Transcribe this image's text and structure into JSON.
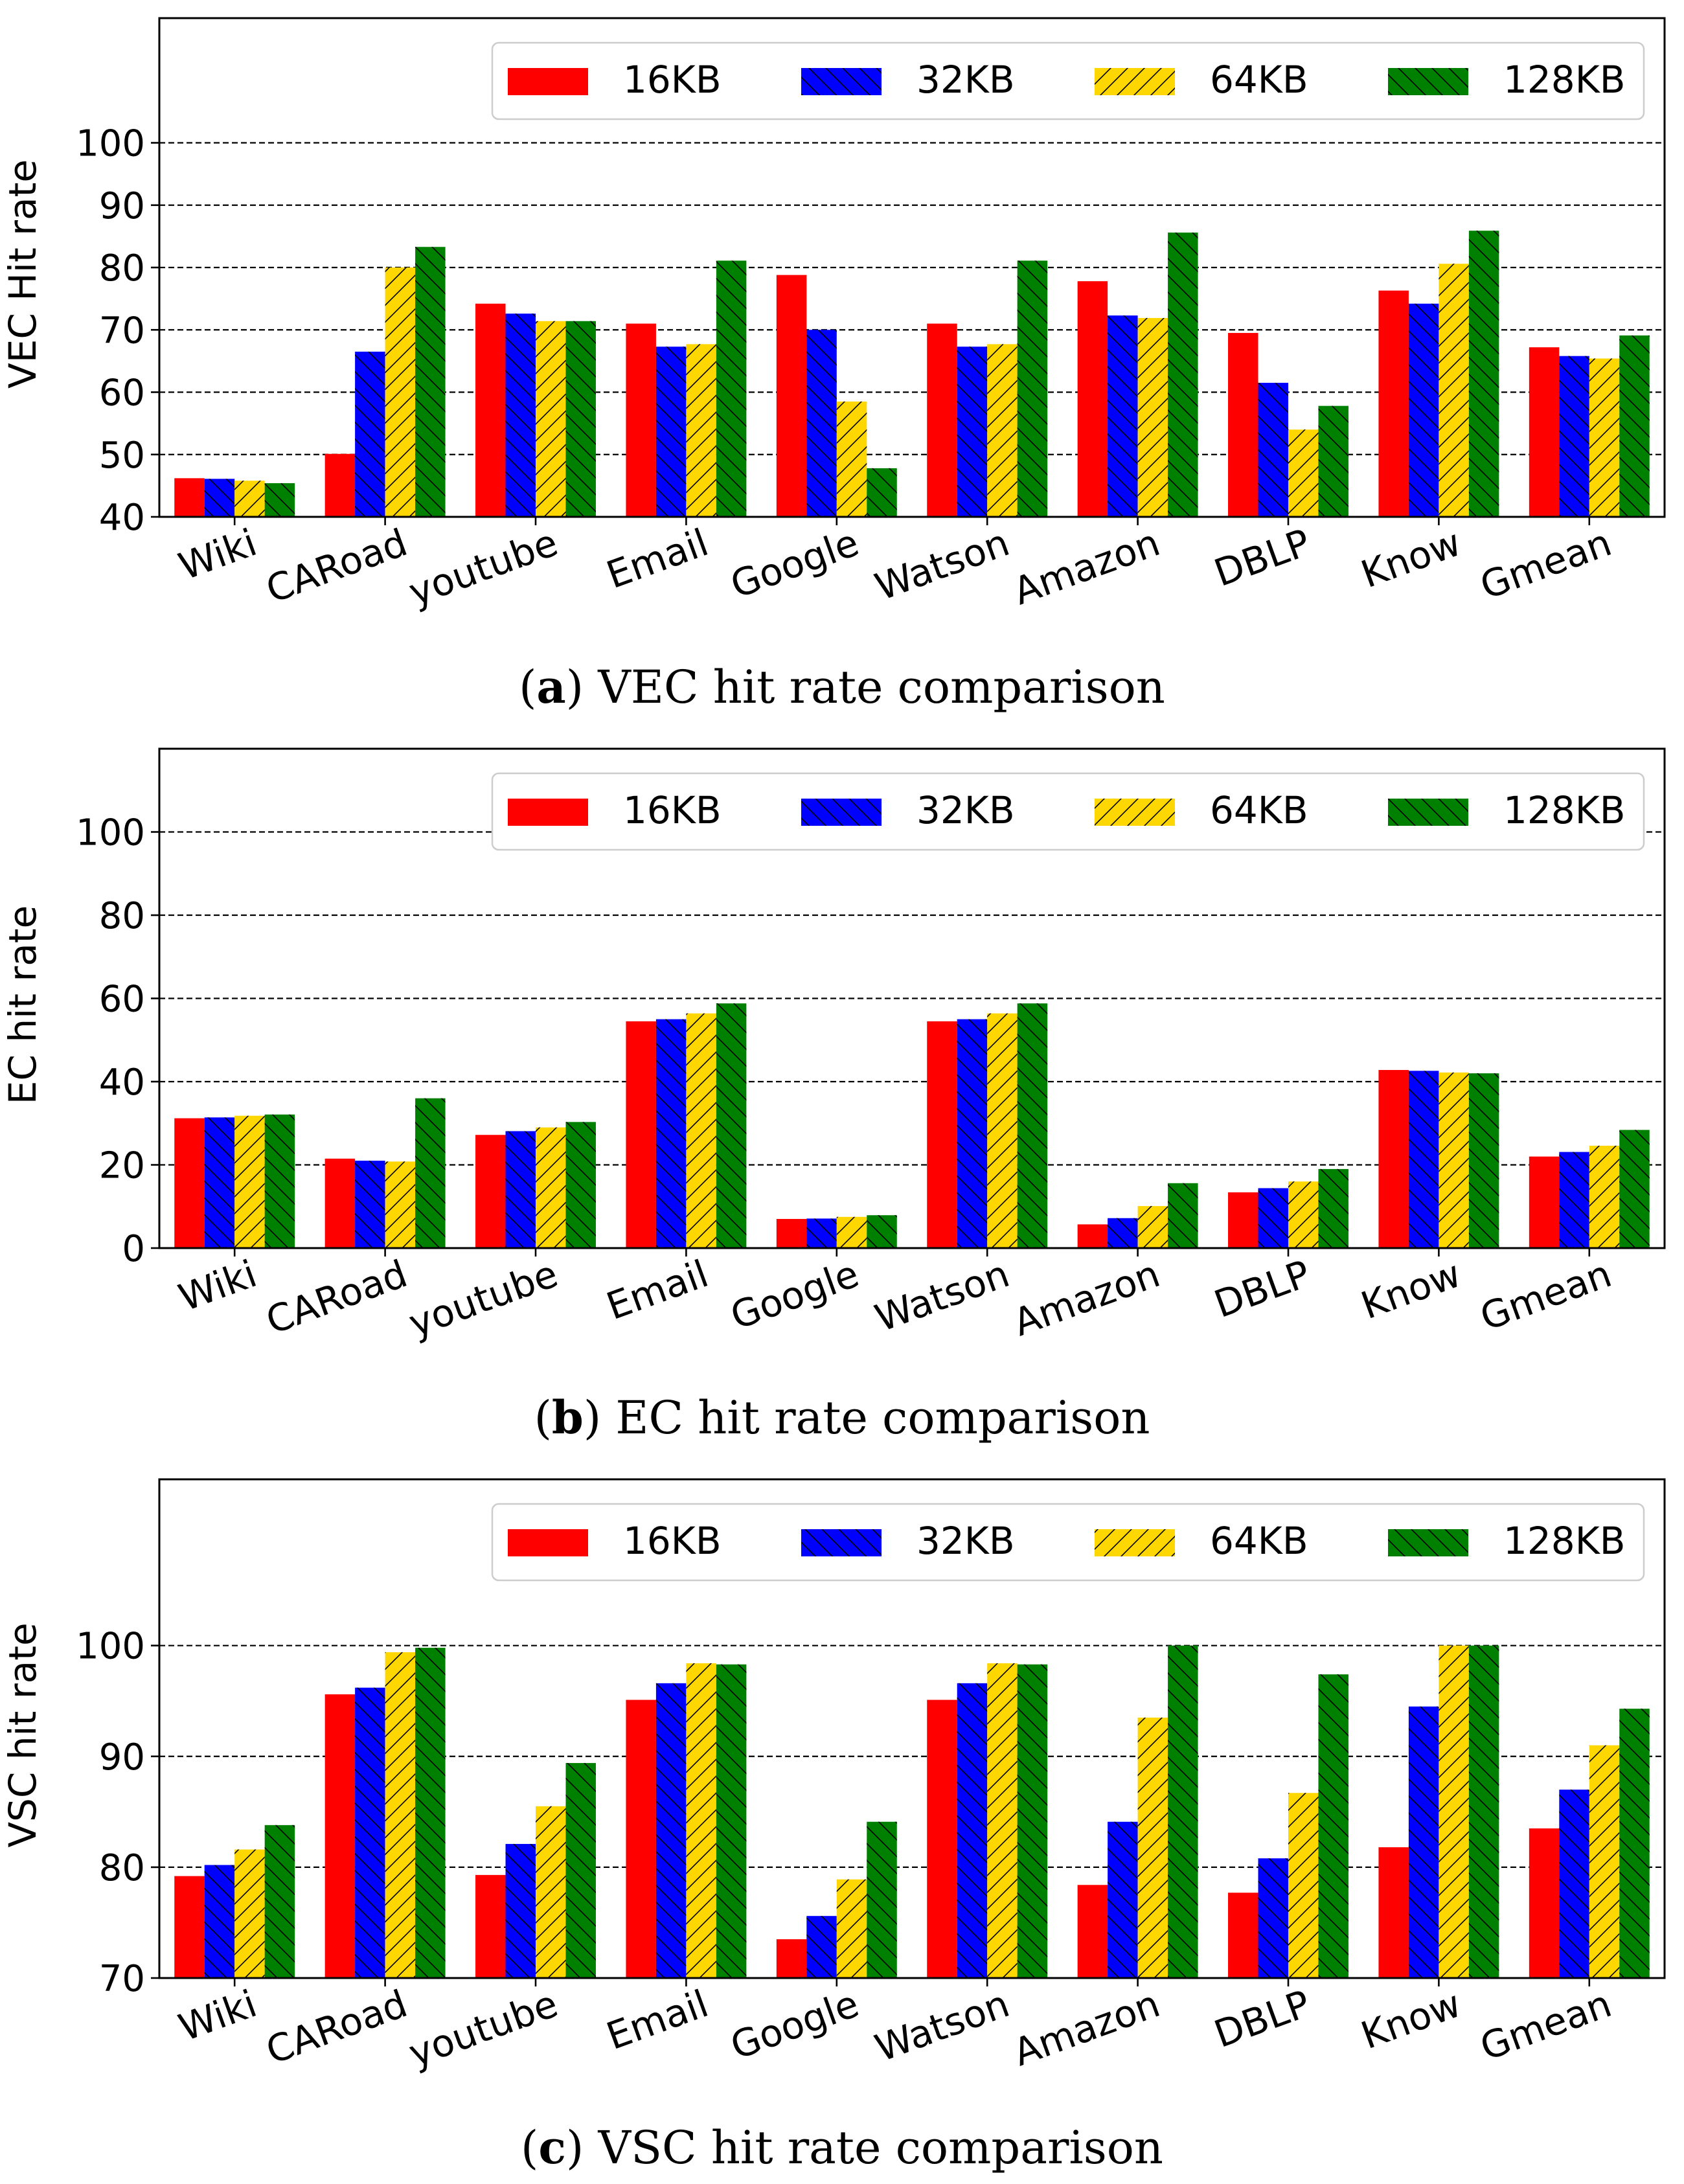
{
  "chart_data": [
    {
      "type": "bar",
      "panel": "a",
      "caption_letter": "a",
      "caption_text": "VEC hit rate comparison",
      "ylabel": "VEC Hit rate",
      "xlabel": "",
      "ylim": [
        40,
        120
      ],
      "yticks": [
        40,
        50,
        60,
        70,
        80,
        90,
        100
      ],
      "ytick_labels": [
        "40",
        "50",
        "60",
        "70",
        "80",
        "90",
        "100"
      ],
      "grid": true,
      "legend_position": "top-right",
      "categories": [
        "Wiki",
        "CARoad",
        "youtube",
        "Email",
        "Google",
        "Watson",
        "Amazon",
        "DBLP",
        "Know",
        "Gmean"
      ],
      "series": [
        {
          "name": "16KB",
          "color": "#ff0000",
          "hatch": "none",
          "values": [
            46.2,
            50.1,
            74.2,
            71.0,
            78.8,
            71.0,
            77.8,
            69.5,
            76.3,
            67.2
          ]
        },
        {
          "name": "32KB",
          "color": "#0000ff",
          "hatch": "back",
          "values": [
            46.1,
            66.5,
            72.6,
            67.3,
            70.0,
            67.3,
            72.3,
            61.5,
            74.2,
            65.8
          ]
        },
        {
          "name": "64KB",
          "color": "#ffd700",
          "hatch": "forward",
          "values": [
            45.8,
            80.0,
            71.4,
            67.7,
            58.5,
            67.7,
            71.9,
            54.0,
            80.6,
            65.4
          ]
        },
        {
          "name": "128KB",
          "color": "#008000",
          "hatch": "back",
          "values": [
            45.4,
            83.3,
            71.4,
            81.1,
            47.8,
            81.1,
            85.6,
            57.8,
            85.9,
            69.1
          ]
        }
      ]
    },
    {
      "type": "bar",
      "panel": "b",
      "caption_letter": "b",
      "caption_text": "EC hit rate comparison",
      "ylabel": "EC hit rate",
      "xlabel": "",
      "ylim": [
        0,
        120
      ],
      "yticks": [
        0,
        20,
        40,
        60,
        80,
        100
      ],
      "ytick_labels": [
        "0",
        "20",
        "40",
        "60",
        "80",
        "100"
      ],
      "grid": true,
      "legend_position": "top-right",
      "categories": [
        "Wiki",
        "CARoad",
        "youtube",
        "Email",
        "Google",
        "Watson",
        "Amazon",
        "DBLP",
        "Know",
        "Gmean"
      ],
      "series": [
        {
          "name": "16KB",
          "color": "#ff0000",
          "hatch": "none",
          "values": [
            31.2,
            21.5,
            27.2,
            54.5,
            7.0,
            54.5,
            5.7,
            13.4,
            42.8,
            22.0
          ]
        },
        {
          "name": "32KB",
          "color": "#0000ff",
          "hatch": "back",
          "values": [
            31.4,
            21.0,
            28.1,
            55.0,
            7.1,
            55.0,
            7.2,
            14.4,
            42.6,
            23.1
          ]
        },
        {
          "name": "64KB",
          "color": "#ffd700",
          "hatch": "forward",
          "values": [
            31.8,
            20.8,
            29.0,
            56.4,
            7.5,
            56.4,
            10.1,
            16.0,
            42.2,
            24.6
          ]
        },
        {
          "name": "128KB",
          "color": "#008000",
          "hatch": "back",
          "values": [
            32.1,
            36.0,
            30.3,
            58.8,
            7.9,
            58.8,
            15.6,
            19.0,
            42.0,
            28.4
          ]
        }
      ]
    },
    {
      "type": "bar",
      "panel": "c",
      "caption_letter": "c",
      "caption_text": "VSC hit rate comparison",
      "ylabel": "VSC hit rate",
      "xlabel": "",
      "ylim": [
        70,
        115
      ],
      "yticks": [
        70,
        80,
        90,
        100
      ],
      "ytick_labels": [
        "70",
        "80",
        "90",
        "100"
      ],
      "grid": true,
      "legend_position": "top-right",
      "categories": [
        "Wiki",
        "CARoad",
        "youtube",
        "Email",
        "Google",
        "Watson",
        "Amazon",
        "DBLP",
        "Know",
        "Gmean"
      ],
      "series": [
        {
          "name": "16KB",
          "color": "#ff0000",
          "hatch": "none",
          "values": [
            79.2,
            95.6,
            79.3,
            95.1,
            73.5,
            95.1,
            78.4,
            77.7,
            81.8,
            83.5
          ]
        },
        {
          "name": "32KB",
          "color": "#0000ff",
          "hatch": "back",
          "values": [
            80.2,
            96.2,
            82.1,
            96.6,
            75.6,
            96.6,
            84.1,
            80.8,
            94.5,
            87.0
          ]
        },
        {
          "name": "64KB",
          "color": "#ffd700",
          "hatch": "forward",
          "values": [
            81.6,
            99.4,
            85.5,
            98.4,
            78.9,
            98.4,
            93.5,
            86.7,
            100.0,
            91.0
          ]
        },
        {
          "name": "128KB",
          "color": "#008000",
          "hatch": "back",
          "values": [
            83.8,
            99.8,
            89.4,
            98.3,
            84.1,
            98.3,
            100.0,
            97.4,
            100.0,
            94.3
          ]
        }
      ]
    }
  ]
}
